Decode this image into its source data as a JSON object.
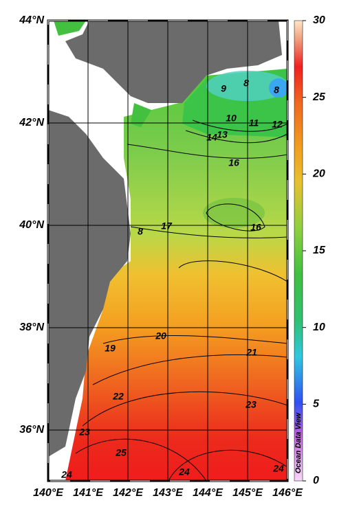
{
  "map": {
    "lat_ticks": [
      {
        "value": 44,
        "label": "44°N"
      },
      {
        "value": 42,
        "label": "42°N"
      },
      {
        "value": 40,
        "label": "40°N"
      },
      {
        "value": 38,
        "label": "38°N"
      },
      {
        "value": 36,
        "label": "36°N"
      }
    ],
    "lon_ticks": [
      {
        "value": 140,
        "label": "140°E"
      },
      {
        "value": 141,
        "label": "141°E"
      },
      {
        "value": 142,
        "label": "142°E"
      },
      {
        "value": 143,
        "label": "143°E"
      },
      {
        "value": 144,
        "label": "144°E"
      },
      {
        "value": 145,
        "label": "145°E"
      },
      {
        "value": 146,
        "label": "146°E"
      }
    ],
    "contour_labels": [
      9,
      8,
      8,
      10,
      11,
      12,
      14,
      13,
      16,
      17,
      8,
      16,
      20,
      19,
      21,
      22,
      23,
      23,
      25,
      24,
      24,
      24
    ],
    "colorbar": {
      "range": [
        0,
        30
      ],
      "ticks": [
        0,
        5,
        10,
        15,
        20,
        25,
        30
      ]
    },
    "watermark": "Ocean Data View"
  }
}
